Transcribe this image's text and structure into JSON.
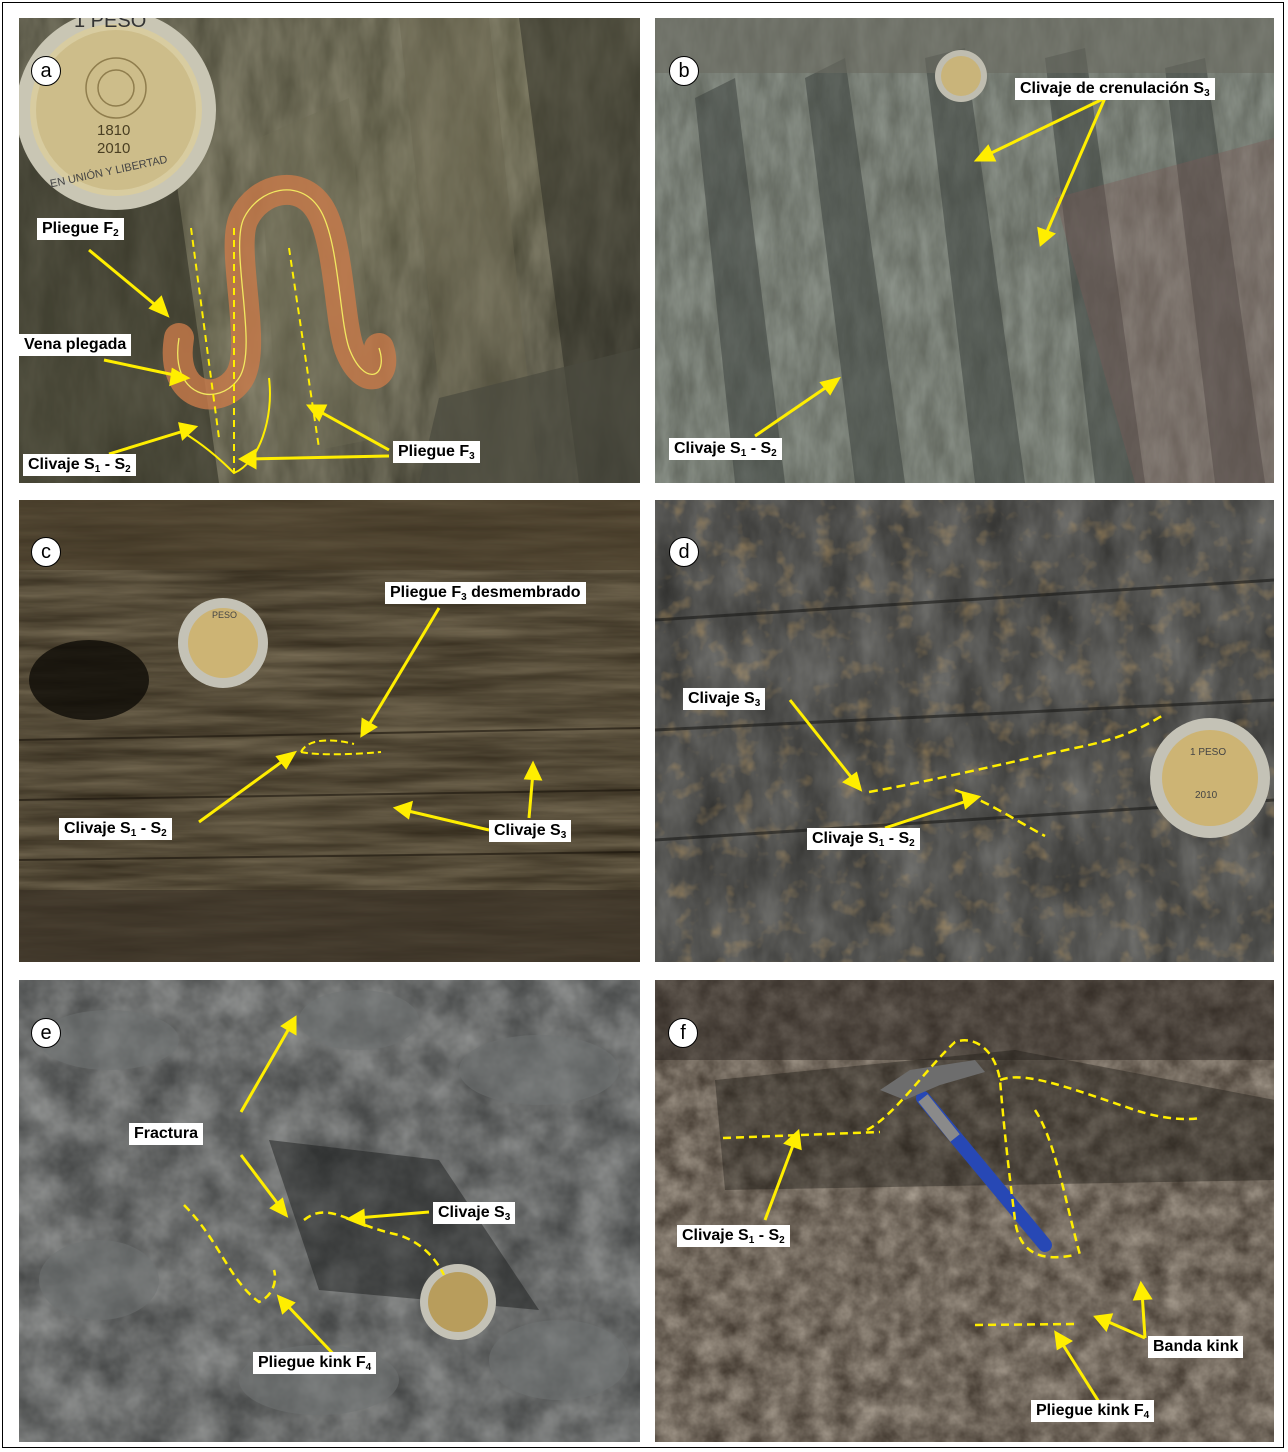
{
  "panels": [
    {
      "letter": "a",
      "labels": {
        "l1": "Pliegue F",
        "l1s": "2",
        "l2": "Vena plegada",
        "l3": "Clivaje S",
        "l3s1": "1",
        "l3m": " - S",
        "l3s2": "2",
        "l4": "Pliegue F",
        "l4s": "3"
      },
      "coin": {
        "top": "1 PESO",
        "year1": "1810",
        "year2": "2010",
        "rim": "EN UNIÓN Y LIBERTAD"
      }
    },
    {
      "letter": "b",
      "labels": {
        "l1": "Clivaje de crenulación S",
        "l1s": "3",
        "l2": "Clivaje S",
        "l2s1": "1",
        "l2m": " - S",
        "l2s2": "2"
      }
    },
    {
      "letter": "c",
      "labels": {
        "l1": "Pliegue F",
        "l1s": "3",
        "l1e": " desmembrado",
        "l2": "Clivaje S",
        "l2s1": "1",
        "l2m": " - S",
        "l2s2": "2",
        "l3": "Clivaje S",
        "l3s": "3"
      },
      "coin": {
        "top": "PESO"
      }
    },
    {
      "letter": "d",
      "labels": {
        "l1": "Clivaje S",
        "l1s": "3",
        "l2": "Clivaje S",
        "l2s1": "1",
        "l2m": " - S",
        "l2s2": "2"
      },
      "coin": {
        "top": "1 PESO",
        "year2": "2010"
      }
    },
    {
      "letter": "e",
      "labels": {
        "l1": "Fractura",
        "l2": "Clivaje S",
        "l2s": "3",
        "l3": "Pliegue kink F",
        "l3s": "4"
      }
    },
    {
      "letter": "f",
      "labels": {
        "l1": "Clivaje S",
        "l1s1": "1",
        "l1m": " - S",
        "l1s2": "2",
        "l2": "Banda kink",
        "l3": "Pliegue kink F",
        "l3s": "4"
      }
    }
  ],
  "colors": {
    "arrow": "#ffee00",
    "label_bg": "#ffffff",
    "label_text": "#000000"
  }
}
